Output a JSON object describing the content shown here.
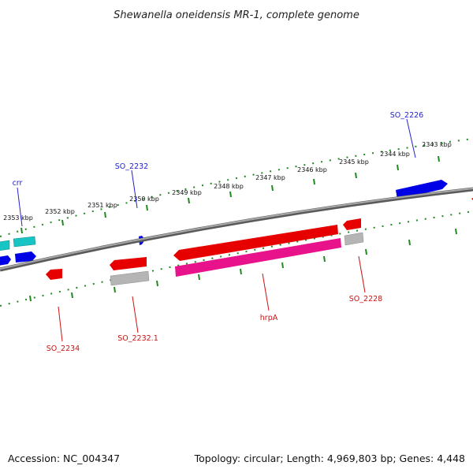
{
  "title": "Shewanella oneidensis MR-1, complete genome",
  "footer": {
    "accession": "Accession: NC_004347",
    "summary": "Topology: circular; Length: 4,969,803 bp; Genes: 4,448"
  },
  "kbp_ticks": [
    "2353 kbp",
    "2352 kbp",
    "2351 kbp",
    "2350 kbp",
    "2349 kbp",
    "2348 kbp",
    "2347 kbp",
    "2346 kbp",
    "2345 kbp",
    "2344 kbp",
    "2343 kbp"
  ],
  "gene_labels": {
    "crr": "crr",
    "so_2232": "SO_2232",
    "so_2226": "SO_2226",
    "so_2234": "SO_2234",
    "so_2232_1": "SO_2232.1",
    "hrpa": "hrpA",
    "so_2228": "SO_2228"
  },
  "colors": {
    "backbone": "#7a7a7a",
    "tick": "#1f8a1f",
    "forward_gene": "#0000e6",
    "reverse_gene": "#e60000",
    "cds": "#e8128a",
    "rna": "#b5b5b5",
    "cyan_gene": "#19c4c4"
  }
}
